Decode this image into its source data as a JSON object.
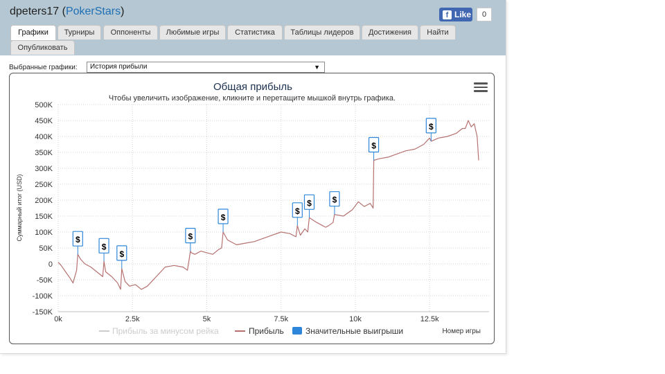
{
  "header": {
    "username": "dpeters17",
    "site": "PokerStars",
    "fb_like_label": "Like",
    "fb_like_count": "0"
  },
  "tabs": [
    {
      "label": "Графики",
      "active": true
    },
    {
      "label": "Турниры",
      "active": false
    },
    {
      "label": "Оппоненты",
      "active": false
    },
    {
      "label": "Любимые игры",
      "active": false
    },
    {
      "label": "Статистика",
      "active": false
    },
    {
      "label": "Таблицы лидеров",
      "active": false
    },
    {
      "label": "Достижения",
      "active": false
    },
    {
      "label": "Найти",
      "active": false
    },
    {
      "label": "Опубликовать",
      "active": false
    }
  ],
  "chart_select": {
    "label": "Выбранные графики:",
    "value": "История прибыли"
  },
  "chart_data": {
    "type": "line",
    "title": "Общая прибыль",
    "subtitle": "Чтобы увеличить изображение, кликните и перетащите мышкой внутрь графика.",
    "xlabel": "Номер игры",
    "ylabel": "Суммарный итог (USD)",
    "xlim": [
      0,
      14500
    ],
    "ylim": [
      -150000,
      500000
    ],
    "x_ticks": [
      "0k",
      "2.5k",
      "5k",
      "7.5k",
      "10k",
      "12.5k"
    ],
    "x_tick_values": [
      0,
      2500,
      5000,
      7500,
      10000,
      12500
    ],
    "y_ticks": [
      "500K",
      "450K",
      "400K",
      "350K",
      "300K",
      "250K",
      "200K",
      "150K",
      "100K",
      "50K",
      "0",
      "-50K",
      "-100K",
      "-150K"
    ],
    "y_tick_values": [
      500000,
      450000,
      400000,
      350000,
      300000,
      250000,
      200000,
      150000,
      100000,
      50000,
      0,
      -50000,
      -100000,
      -150000
    ],
    "grid": true,
    "legend_placement": "bottom",
    "series": [
      {
        "name": "Прибыль за минусом рейка",
        "color": "#cccccc",
        "hidden": true,
        "x": [],
        "y": []
      },
      {
        "name": "Прибыль",
        "color": "#b5716f",
        "x": [
          0,
          100,
          250,
          400,
          500,
          620,
          660,
          750,
          900,
          1100,
          1300,
          1500,
          1540,
          1600,
          1800,
          2000,
          2100,
          2140,
          2250,
          2400,
          2600,
          2800,
          3000,
          3300,
          3600,
          3900,
          4200,
          4350,
          4450,
          4480,
          4600,
          4800,
          5000,
          5200,
          5400,
          5500,
          5550,
          5700,
          6000,
          6300,
          6600,
          6900,
          7200,
          7500,
          7800,
          8000,
          8050,
          8150,
          8300,
          8400,
          8450,
          8700,
          9000,
          9100,
          9250,
          9300,
          9600,
          9900,
          10100,
          10300,
          10500,
          10600,
          10620,
          10800,
          11100,
          11400,
          11700,
          12000,
          12300,
          12500,
          12550,
          12800,
          13100,
          13400,
          13600,
          13700,
          13800,
          13900,
          14000,
          14100,
          14150
        ],
        "y": [
          5000,
          -5000,
          -25000,
          -45000,
          -60000,
          -20000,
          30000,
          15000,
          0,
          -10000,
          -25000,
          -40000,
          8000,
          -25000,
          -40000,
          -60000,
          -80000,
          -15000,
          -55000,
          -70000,
          -65000,
          -80000,
          -70000,
          -40000,
          -10000,
          -5000,
          -10000,
          -20000,
          40000,
          35000,
          30000,
          40000,
          35000,
          30000,
          45000,
          50000,
          100000,
          75000,
          60000,
          65000,
          70000,
          80000,
          90000,
          100000,
          95000,
          85000,
          120000,
          90000,
          110000,
          100000,
          145000,
          130000,
          115000,
          120000,
          130000,
          155000,
          150000,
          170000,
          195000,
          180000,
          190000,
          175000,
          325000,
          330000,
          335000,
          345000,
          355000,
          360000,
          375000,
          395000,
          385000,
          395000,
          400000,
          410000,
          425000,
          425000,
          450000,
          430000,
          440000,
          400000,
          325000
        ]
      },
      {
        "name": "Значительные выигрыши",
        "color": "#2d86d9",
        "type": "marker",
        "marker_label": "$",
        "x": [
          660,
          1540,
          2140,
          4450,
          5550,
          8050,
          8450,
          9300,
          10620,
          12550
        ],
        "y": [
          30000,
          8000,
          -15000,
          40000,
          100000,
          120000,
          145000,
          155000,
          325000,
          385000
        ]
      }
    ]
  }
}
